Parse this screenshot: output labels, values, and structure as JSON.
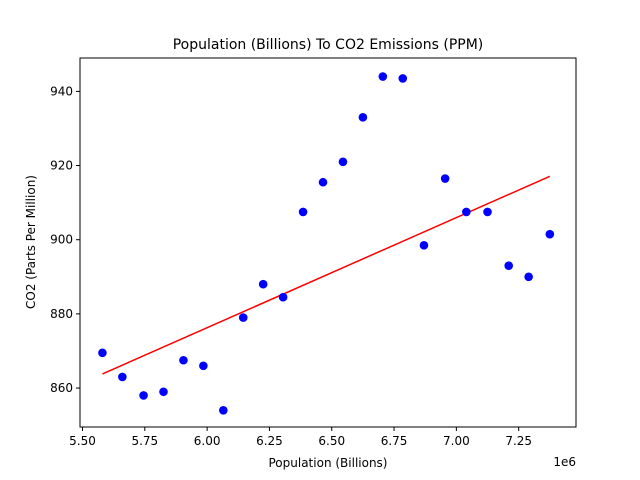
{
  "chart_data": {
    "type": "scatter",
    "title": "Population (Billions) To CO2 Emissions (PPM)",
    "xlabel": "Population (Billions)",
    "ylabel": "CO2 (Parts Per Million)",
    "x_offset_text": "1e6",
    "xlim": [
      5.49,
      7.48
    ],
    "ylim": [
      849.5,
      949
    ],
    "x_ticks": [
      5.5,
      5.75,
      6.0,
      6.25,
      6.5,
      6.75,
      7.0,
      7.25
    ],
    "x_tick_labels": [
      "5.50",
      "5.75",
      "6.00",
      "6.25",
      "6.50",
      "6.75",
      "7.00",
      "7.25"
    ],
    "y_ticks": [
      860,
      880,
      900,
      920,
      940
    ],
    "y_tick_labels": [
      "860",
      "880",
      "900",
      "920",
      "940"
    ],
    "grid": false,
    "series": [
      {
        "marker_color": "#0000ff",
        "x": [
          5.58,
          5.66,
          5.745,
          5.825,
          5.905,
          5.985,
          6.065,
          6.145,
          6.225,
          6.305,
          6.385,
          6.465,
          6.545,
          6.625,
          6.705,
          6.785,
          6.87,
          6.955,
          7.04,
          7.125,
          7.21,
          7.29,
          7.375
        ],
        "y": [
          869.5,
          863,
          858,
          859,
          867.5,
          866,
          854,
          879,
          888,
          884.5,
          907.5,
          915.5,
          921,
          933,
          944,
          943.5,
          898.5,
          916.5,
          907.5,
          907.5,
          893,
          890,
          901.5
        ]
      }
    ],
    "fit_line": {
      "color": "#ff0000",
      "x": [
        5.58,
        7.375
      ],
      "y": [
        863.8,
        917.1
      ]
    }
  }
}
